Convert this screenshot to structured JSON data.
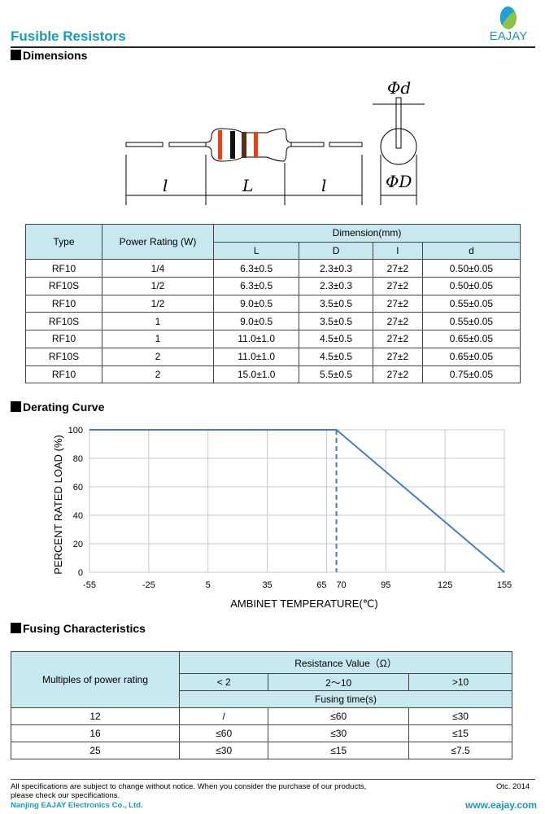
{
  "header": {
    "title": "Fusible Resistors",
    "logo_text": "EAJAY"
  },
  "sections": {
    "dimensions": "Dimensions",
    "derating": "Derating Curve",
    "fusing": "Fusing Characteristics"
  },
  "diagram": {
    "labels": [
      "l",
      "L",
      "l",
      "Φd",
      "ΦD"
    ]
  },
  "dimensions_table": {
    "headers": {
      "type": "Type",
      "power": "Power Rating (W)",
      "dimension": "Dimension(mm)",
      "sub": [
        "L",
        "D",
        "l",
        "d"
      ]
    },
    "rows": [
      [
        "RF10",
        "1/4",
        "6.3±0.5",
        "2.3±0.3",
        "27±2",
        "0.50±0.05"
      ],
      [
        "RF10S",
        "1/2",
        "6.3±0.5",
        "2.3±0.3",
        "27±2",
        "0.50±0.05"
      ],
      [
        "RF10",
        "1/2",
        "9.0±0.5",
        "3.5±0.5",
        "27±2",
        "0.55±0.05"
      ],
      [
        "RF10S",
        "1",
        "9.0±0.5",
        "3.5±0.5",
        "27±2",
        "0.55±0.05"
      ],
      [
        "RF10",
        "1",
        "11.0±1.0",
        "4.5±0.5",
        "27±2",
        "0.65±0.05"
      ],
      [
        "RF10S",
        "2",
        "11.0±1.0",
        "4.5±0.5",
        "27±2",
        "0.65±0.05"
      ],
      [
        "RF10",
        "2",
        "15.0±1.0",
        "5.5±0.5",
        "27±2",
        "0.75±0.05"
      ]
    ]
  },
  "chart_data": {
    "type": "line",
    "title": "",
    "xlabel": "AMBINET TEMPERATURE(℃)",
    "ylabel": "PERCENT RATED LOAD (%)",
    "x_ticks": [
      -55,
      -25,
      5,
      35,
      65,
      70,
      95,
      125,
      155
    ],
    "y_ticks": [
      0,
      20,
      40,
      60,
      80,
      100
    ],
    "xlim": [
      -55,
      155
    ],
    "ylim": [
      0,
      100
    ],
    "grid": true,
    "series": [
      {
        "x": [
          -55,
          70,
          155
        ],
        "y": [
          100,
          100,
          0
        ],
        "color": "#4a7ebb"
      }
    ],
    "reference_line": {
      "x": 70,
      "style": "dashed"
    }
  },
  "fusing_table": {
    "row_header": "Multiples of power rating",
    "group_header": "Resistance Value（Ω）",
    "sub": [
      "< 2",
      "2～10",
      ">10"
    ],
    "time_header": "Fusing time(s)",
    "rows": [
      [
        "12",
        "/",
        "≤60",
        "≤30"
      ],
      [
        "16",
        "≤60",
        "≤30",
        "≤15"
      ],
      [
        "25",
        "≤30",
        "≤15",
        "≤7.5"
      ]
    ]
  },
  "footer": {
    "notice1": "All specifications are subject to change without notice. When you consider the purchase of our products,",
    "notice2": "please check our specifications.",
    "date": "Otc. 2014",
    "company": "Nanjing EAJAY Electronics Co., Ltd.",
    "website": "www.eajay.com"
  },
  "colors": {
    "brand": "#1a9cb0",
    "table_header": "#c8e8ef",
    "line": "#4a7ebb"
  }
}
